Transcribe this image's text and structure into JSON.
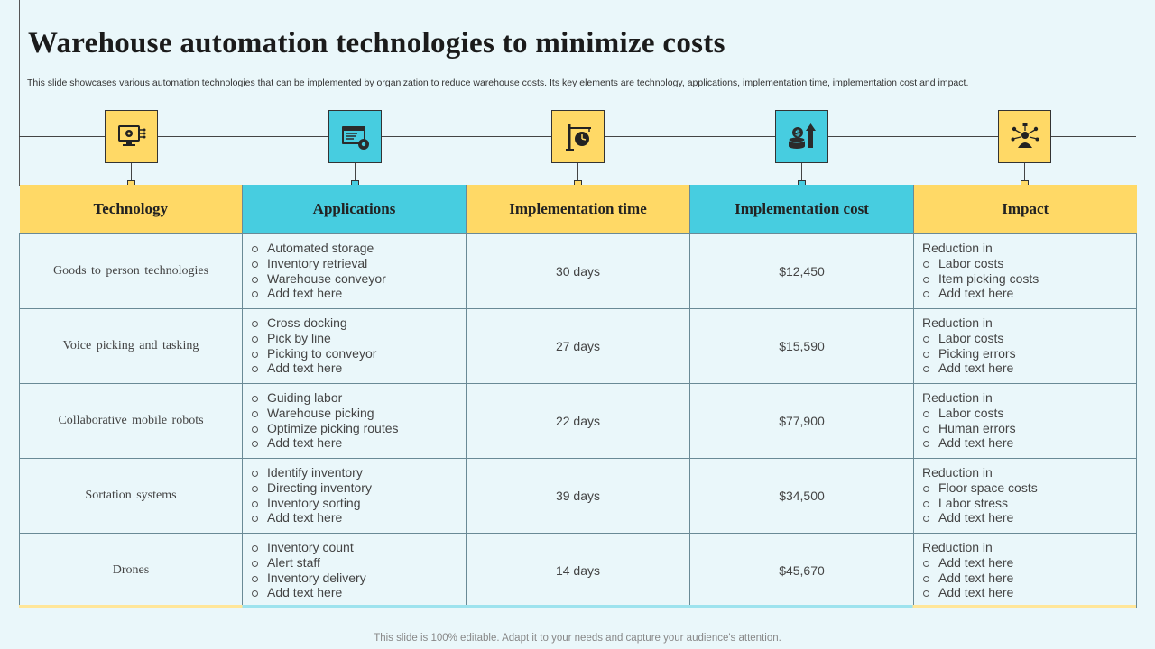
{
  "title": "Warehouse automation technologies to minimize costs",
  "subtitle": "This slide showcases various automation technologies that can be implemented by organization to reduce warehouse costs. Its key elements are technology, applications, implementation time, implementation cost and impact.",
  "icons": [
    "monitor-gear-icon",
    "browser-gear-icon",
    "signpost-clock-icon",
    "money-growth-icon",
    "person-network-icon"
  ],
  "colors": {
    "yellow": "#ffd966",
    "blue": "#47cde0",
    "background": "#eaf7fa"
  },
  "headers": [
    "Technology",
    "Applications",
    "Implementation time",
    "Implementation cost",
    "Impact"
  ],
  "rows": [
    {
      "technology": "Goods to person technologies",
      "applications": [
        "Automated storage",
        "Inventory retrieval",
        "Warehouse conveyor",
        "Add text here"
      ],
      "time": "30 days",
      "cost": "$12,450",
      "impact_head": "Reduction in",
      "impact": [
        "Labor costs",
        "Item picking costs",
        "Add text here"
      ]
    },
    {
      "technology": "Voice picking  and tasking",
      "applications": [
        "Cross docking",
        "Pick by line",
        "Picking to conveyor",
        "Add text here"
      ],
      "time": "27 days",
      "cost": "$15,590",
      "impact_head": "Reduction in",
      "impact": [
        "Labor costs",
        "Picking errors",
        "Add text here"
      ]
    },
    {
      "technology": "Collaborative  mobile  robots",
      "applications": [
        "Guiding labor",
        "Warehouse picking",
        "Optimize picking routes",
        "Add text here"
      ],
      "time": "22 days",
      "cost": "$77,900",
      "impact_head": "Reduction in",
      "impact": [
        "Labor costs",
        "Human errors",
        "Add text here"
      ]
    },
    {
      "technology": "Sortation  systems",
      "applications": [
        "Identify inventory",
        "Directing inventory",
        "Inventory sorting",
        "Add text here"
      ],
      "time": "39 days",
      "cost": "$34,500",
      "impact_head": "Reduction in",
      "impact": [
        "Floor space costs",
        "Labor stress",
        "Add text here"
      ]
    },
    {
      "technology": "Drones",
      "applications": [
        "Inventory count",
        "Alert staff",
        "Inventory delivery",
        "Add text here"
      ],
      "time": "14 days",
      "cost": "$45,670",
      "impact_head": "Reduction in",
      "impact": [
        "Add text here",
        "Add text here",
        "Add text here"
      ]
    }
  ],
  "footer": "This slide is 100% editable. Adapt it to your needs and capture your audience's attention."
}
